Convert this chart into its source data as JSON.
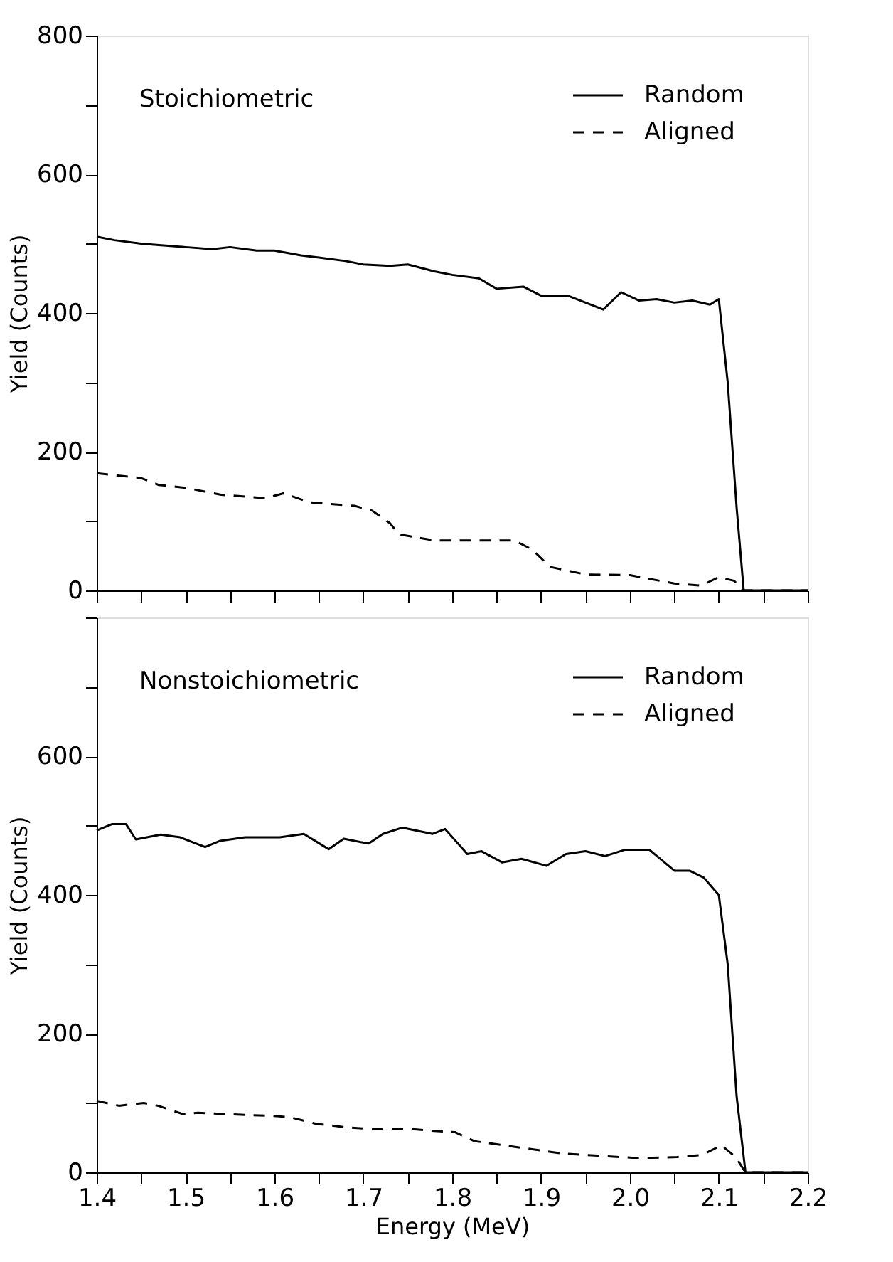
{
  "chart_data": [
    {
      "type": "line",
      "ylabel": "Yield (Counts)",
      "annotations": [
        "Stoichiometric"
      ],
      "legend": "top right",
      "tick_labels": "y",
      "xlim": [
        1.4,
        2.2
      ],
      "ylim": [
        0,
        800
      ],
      "xticks": [
        1.4,
        {
          "value": 1.45,
          "label": null
        },
        1.5,
        {
          "value": 1.55,
          "label": null
        },
        1.6,
        {
          "value": 1.65,
          "label": null
        },
        1.7,
        {
          "value": 1.75,
          "label": null
        },
        1.8,
        {
          "value": 1.85,
          "label": null
        },
        1.9,
        {
          "value": 1.95,
          "label": null
        },
        2.0,
        {
          "value": 2.05,
          "label": null
        },
        2.1,
        {
          "value": 2.15,
          "label": null
        },
        2.2
      ],
      "yticks": [
        0,
        {
          "value": 100,
          "label": null
        },
        200,
        {
          "value": 300,
          "label": null
        },
        400,
        {
          "value": 500,
          "label": null
        },
        600,
        {
          "value": 700,
          "label": null
        },
        800
      ],
      "series": [
        {
          "name": "Random",
          "color": "#000000",
          "line_style": "solid",
          "x": [
            1.4,
            1.42,
            1.45,
            1.47,
            1.5,
            1.53,
            1.55,
            1.58,
            1.6,
            1.63,
            1.65,
            1.68,
            1.7,
            1.73,
            1.75,
            1.78,
            1.8,
            1.83,
            1.85,
            1.88,
            1.9,
            1.93,
            1.95,
            1.97,
            1.99,
            2.01,
            2.03,
            2.05,
            2.07,
            2.09,
            2.1,
            2.11,
            2.12,
            2.128,
            2.15,
            2.2
          ],
          "values": [
            510,
            505,
            500,
            498,
            495,
            492,
            495,
            490,
            490,
            483,
            480,
            475,
            470,
            468,
            470,
            460,
            455,
            450,
            435,
            438,
            425,
            425,
            415,
            405,
            430,
            418,
            420,
            415,
            418,
            412,
            420,
            300,
            120,
            0,
            0,
            0
          ]
        },
        {
          "name": "Aligned",
          "color": "#000000",
          "line_style": "dashed",
          "x": [
            1.4,
            1.45,
            1.47,
            1.5,
            1.54,
            1.59,
            1.61,
            1.64,
            1.69,
            1.71,
            1.73,
            1.74,
            1.78,
            1.82,
            1.87,
            1.89,
            1.91,
            1.95,
            2.0,
            2.05,
            2.08,
            2.1,
            2.117,
            2.128,
            2.15,
            2.2
          ],
          "values": [
            169,
            162,
            152,
            148,
            138,
            133,
            140,
            127,
            122,
            115,
            97,
            81,
            72,
            72,
            72,
            59,
            34,
            23,
            22,
            10,
            7,
            19,
            14,
            0,
            0,
            0
          ]
        }
      ]
    },
    {
      "type": "line",
      "xlabel": "Energy (MeV)",
      "ylabel": "Yield (Counts)",
      "annotations": [
        "Nonstoichiometric"
      ],
      "legend": "top right",
      "xlim": [
        1.4,
        2.2
      ],
      "ylim": [
        0,
        800
      ],
      "xticks": [
        1.4,
        {
          "value": 1.45,
          "label": null
        },
        1.5,
        {
          "value": 1.55,
          "label": null
        },
        1.6,
        {
          "value": 1.65,
          "label": null
        },
        1.7,
        {
          "value": 1.75,
          "label": null
        },
        1.8,
        {
          "value": 1.85,
          "label": null
        },
        1.9,
        {
          "value": 1.95,
          "label": null
        },
        "2.0",
        {
          "value": 2.05,
          "label": null
        },
        2.1,
        {
          "value": 2.15,
          "label": null
        },
        2.2
      ],
      "yticks": [
        0,
        {
          "value": 100,
          "label": null
        },
        200,
        {
          "value": 300,
          "label": null
        },
        400,
        {
          "value": 500,
          "label": null
        },
        600,
        {
          "value": 700,
          "label": null
        },
        {
          "value": 800,
          "label": null
        }
      ],
      "series": [
        {
          "name": "Random",
          "color": "#000000",
          "line_style": "solid",
          "x": [
            1.4,
            1.417,
            1.433,
            1.444,
            1.472,
            1.494,
            1.522,
            1.539,
            1.567,
            1.606,
            1.633,
            1.661,
            1.678,
            1.706,
            1.722,
            1.744,
            1.778,
            1.792,
            1.817,
            1.833,
            1.856,
            1.878,
            1.906,
            1.928,
            1.95,
            1.972,
            1.994,
            2.022,
            2.05,
            2.067,
            2.083,
            2.1,
            2.11,
            2.12,
            2.13,
            2.15,
            2.2
          ],
          "values": [
            493,
            502,
            502,
            480,
            487,
            483,
            469,
            478,
            483,
            483,
            488,
            466,
            481,
            474,
            488,
            497,
            488,
            495,
            459,
            463,
            447,
            452,
            442,
            459,
            463,
            456,
            465,
            465,
            435,
            435,
            425,
            400,
            300,
            110,
            0,
            0,
            0
          ]
        },
        {
          "name": "Aligned",
          "color": "#000000",
          "line_style": "dashed",
          "x": [
            1.4,
            1.425,
            1.453,
            1.469,
            1.497,
            1.514,
            1.547,
            1.603,
            1.619,
            1.647,
            1.681,
            1.714,
            1.758,
            1.775,
            1.803,
            1.825,
            1.858,
            1.897,
            1.925,
            1.964,
            2.003,
            2.025,
            2.053,
            2.081,
            2.103,
            2.119,
            2.13,
            2.15,
            2.2
          ],
          "values": [
            103,
            96,
            100,
            96,
            84,
            86,
            84,
            81,
            79,
            70,
            65,
            62,
            62,
            60,
            58,
            45,
            39,
            32,
            27,
            24,
            21,
            21,
            22,
            25,
            39,
            22,
            0,
            0,
            0
          ]
        }
      ]
    }
  ]
}
